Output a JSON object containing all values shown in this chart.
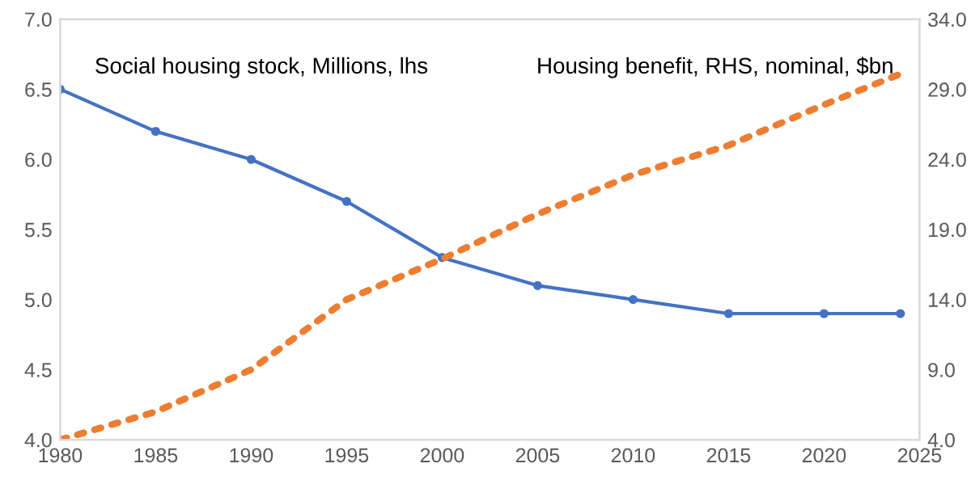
{
  "chart_data": {
    "type": "line",
    "x": [
      1980,
      1985,
      1990,
      1995,
      2000,
      2005,
      2010,
      2015,
      2020,
      2024
    ],
    "series": [
      {
        "name": "Social housing stock, Millions, lhs",
        "color": "#4472c4",
        "marker": "circle",
        "line_style": "solid",
        "values": [
          6.5,
          6.2,
          6.0,
          5.7,
          5.3,
          5.1,
          5.0,
          4.9,
          4.9,
          4.9
        ]
      },
      {
        "name": "Housing benefit, RHS, nominal, $bn",
        "color": "#ed7d31",
        "marker": "none",
        "line_style": "dotted",
        "axis": "y2",
        "values": [
          4.0,
          6.0,
          9.0,
          14.0,
          16.9,
          20.1,
          22.9,
          25.0,
          27.9,
          30.1
        ]
      }
    ],
    "xlim": [
      1980,
      2025
    ],
    "xticks": [
      1980,
      1985,
      1990,
      1995,
      2000,
      2005,
      2010,
      2015,
      2020,
      2025
    ],
    "ylim": [
      4.0,
      7.0
    ],
    "yticks": [
      {
        "value": 4.0,
        "label": "4.0"
      },
      {
        "value": 4.5,
        "label": "4.5"
      },
      {
        "value": 5.0,
        "label": "5.0"
      },
      {
        "value": 5.5,
        "label": "5.5"
      },
      {
        "value": 6.0,
        "label": "6.0"
      },
      {
        "value": 6.5,
        "label": "6.5"
      },
      {
        "value": 7.0,
        "label": "7.0"
      }
    ],
    "y2lim": [
      4.0,
      34.0
    ],
    "y2ticks": [
      {
        "value": 4,
        "label": "4.0"
      },
      {
        "value": 9,
        "label": "9.0"
      },
      {
        "value": 14,
        "label": "14.0"
      },
      {
        "value": 19,
        "label": "19.0"
      },
      {
        "value": 24,
        "label": "24.0"
      },
      {
        "value": 29,
        "label": "29.0"
      },
      {
        "value": 34,
        "label": "34.0"
      }
    ],
    "grid": false,
    "legend": false
  }
}
